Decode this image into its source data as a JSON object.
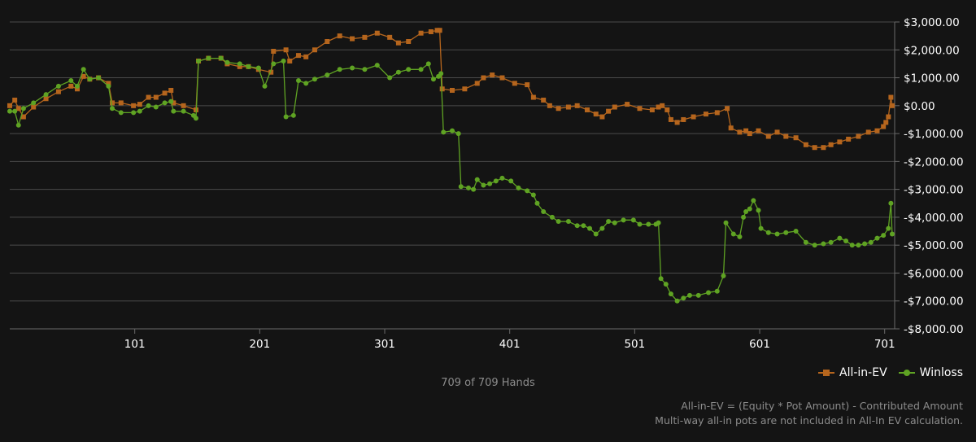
{
  "chart_data": {
    "type": "line",
    "xlabel": "",
    "ylabel": "",
    "x_range": [
      1,
      709
    ],
    "x_ticks": [
      101,
      201,
      301,
      401,
      501,
      601,
      701
    ],
    "ylim": [
      -8000,
      3000
    ],
    "y_ticks": [
      {
        "value": 3000,
        "label": "$3,000.00"
      },
      {
        "value": 2000,
        "label": "$2,000.00"
      },
      {
        "value": 1000,
        "label": "$1,000.00"
      },
      {
        "value": 0,
        "label": "$0.00"
      },
      {
        "value": -1000,
        "label": "-$1,000.00"
      },
      {
        "value": -2000,
        "label": "-$2,000.00"
      },
      {
        "value": -3000,
        "label": "-$3,000.00"
      },
      {
        "value": -4000,
        "label": "-$4,000.00"
      },
      {
        "value": -5000,
        "label": "-$5,000.00"
      },
      {
        "value": -6000,
        "label": "-$6,000.00"
      },
      {
        "value": -7000,
        "label": "-$7,000.00"
      },
      {
        "value": -8000,
        "label": "-$8,000.00"
      }
    ],
    "grid": true,
    "legend_position": "bottom-right",
    "series": [
      {
        "name": "All-in-EV",
        "color": "#b5651d",
        "marker": "square",
        "points": [
          [
            1,
            0
          ],
          [
            5,
            200
          ],
          [
            8,
            -100
          ],
          [
            12,
            -400
          ],
          [
            20,
            -50
          ],
          [
            30,
            250
          ],
          [
            40,
            500
          ],
          [
            50,
            700
          ],
          [
            55,
            600
          ],
          [
            60,
            1050
          ],
          [
            65,
            950
          ],
          [
            72,
            1000
          ],
          [
            80,
            800
          ],
          [
            83,
            100
          ],
          [
            90,
            100
          ],
          [
            100,
            0
          ],
          [
            105,
            50
          ],
          [
            112,
            300
          ],
          [
            118,
            300
          ],
          [
            125,
            450
          ],
          [
            130,
            550
          ],
          [
            132,
            100
          ],
          [
            140,
            0
          ],
          [
            150,
            -150
          ],
          [
            152,
            1600
          ],
          [
            160,
            1700
          ],
          [
            170,
            1700
          ],
          [
            175,
            1500
          ],
          [
            185,
            1400
          ],
          [
            192,
            1400
          ],
          [
            200,
            1300
          ],
          [
            210,
            1200
          ],
          [
            212,
            1950
          ],
          [
            222,
            2000
          ],
          [
            225,
            1600
          ],
          [
            232,
            1800
          ],
          [
            238,
            1750
          ],
          [
            245,
            2000
          ],
          [
            255,
            2300
          ],
          [
            265,
            2500
          ],
          [
            275,
            2400
          ],
          [
            285,
            2450
          ],
          [
            295,
            2600
          ],
          [
            305,
            2450
          ],
          [
            312,
            2250
          ],
          [
            320,
            2300
          ],
          [
            330,
            2600
          ],
          [
            338,
            2650
          ],
          [
            343,
            2700
          ],
          [
            345,
            2700
          ],
          [
            347,
            600
          ],
          [
            355,
            550
          ],
          [
            365,
            600
          ],
          [
            375,
            800
          ],
          [
            380,
            1000
          ],
          [
            387,
            1100
          ],
          [
            395,
            1000
          ],
          [
            405,
            800
          ],
          [
            415,
            750
          ],
          [
            420,
            300
          ],
          [
            428,
            200
          ],
          [
            433,
            0
          ],
          [
            440,
            -100
          ],
          [
            448,
            -50
          ],
          [
            455,
            0
          ],
          [
            463,
            -150
          ],
          [
            470,
            -300
          ],
          [
            475,
            -400
          ],
          [
            480,
            -200
          ],
          [
            485,
            -50
          ],
          [
            495,
            50
          ],
          [
            505,
            -100
          ],
          [
            515,
            -150
          ],
          [
            520,
            -50
          ],
          [
            523,
            0
          ],
          [
            527,
            -150
          ],
          [
            530,
            -500
          ],
          [
            535,
            -600
          ],
          [
            540,
            -500
          ],
          [
            548,
            -400
          ],
          [
            558,
            -300
          ],
          [
            567,
            -250
          ],
          [
            575,
            -100
          ],
          [
            578,
            -800
          ],
          [
            585,
            -950
          ],
          [
            590,
            -900
          ],
          [
            593,
            -1000
          ],
          [
            600,
            -900
          ],
          [
            608,
            -1100
          ],
          [
            615,
            -950
          ],
          [
            622,
            -1100
          ],
          [
            630,
            -1150
          ],
          [
            638,
            -1400
          ],
          [
            645,
            -1500
          ],
          [
            652,
            -1500
          ],
          [
            658,
            -1400
          ],
          [
            665,
            -1300
          ],
          [
            672,
            -1200
          ],
          [
            680,
            -1100
          ],
          [
            688,
            -950
          ],
          [
            695,
            -900
          ],
          [
            700,
            -750
          ],
          [
            702,
            -600
          ],
          [
            704,
            -400
          ],
          [
            706,
            300
          ],
          [
            707,
            0
          ]
        ]
      },
      {
        "name": "Winloss",
        "color": "#5fa323",
        "marker": "circle",
        "points": [
          [
            1,
            -200
          ],
          [
            5,
            -200
          ],
          [
            8,
            -700
          ],
          [
            12,
            -100
          ],
          [
            20,
            100
          ],
          [
            30,
            400
          ],
          [
            40,
            700
          ],
          [
            50,
            900
          ],
          [
            55,
            700
          ],
          [
            60,
            1300
          ],
          [
            65,
            950
          ],
          [
            72,
            1000
          ],
          [
            80,
            700
          ],
          [
            83,
            -100
          ],
          [
            90,
            -250
          ],
          [
            100,
            -250
          ],
          [
            105,
            -200
          ],
          [
            112,
            0
          ],
          [
            118,
            -50
          ],
          [
            125,
            100
          ],
          [
            130,
            150
          ],
          [
            132,
            -200
          ],
          [
            140,
            -200
          ],
          [
            148,
            -350
          ],
          [
            150,
            -450
          ],
          [
            152,
            1600
          ],
          [
            160,
            1700
          ],
          [
            170,
            1700
          ],
          [
            175,
            1550
          ],
          [
            185,
            1500
          ],
          [
            192,
            1400
          ],
          [
            200,
            1350
          ],
          [
            205,
            700
          ],
          [
            212,
            1500
          ],
          [
            220,
            1600
          ],
          [
            222,
            -400
          ],
          [
            228,
            -350
          ],
          [
            232,
            900
          ],
          [
            238,
            800
          ],
          [
            245,
            950
          ],
          [
            255,
            1100
          ],
          [
            265,
            1300
          ],
          [
            275,
            1350
          ],
          [
            285,
            1300
          ],
          [
            295,
            1450
          ],
          [
            305,
            1000
          ],
          [
            312,
            1200
          ],
          [
            320,
            1300
          ],
          [
            330,
            1300
          ],
          [
            336,
            1500
          ],
          [
            340,
            950
          ],
          [
            344,
            1050
          ],
          [
            346,
            1150
          ],
          [
            348,
            -950
          ],
          [
            355,
            -900
          ],
          [
            360,
            -1000
          ],
          [
            362,
            -2900
          ],
          [
            368,
            -2950
          ],
          [
            372,
            -3000
          ],
          [
            375,
            -2650
          ],
          [
            380,
            -2850
          ],
          [
            385,
            -2800
          ],
          [
            390,
            -2700
          ],
          [
            395,
            -2600
          ],
          [
            402,
            -2700
          ],
          [
            408,
            -2950
          ],
          [
            415,
            -3050
          ],
          [
            420,
            -3200
          ],
          [
            423,
            -3500
          ],
          [
            428,
            -3800
          ],
          [
            435,
            -4000
          ],
          [
            440,
            -4150
          ],
          [
            448,
            -4150
          ],
          [
            455,
            -4300
          ],
          [
            460,
            -4300
          ],
          [
            465,
            -4400
          ],
          [
            470,
            -4600
          ],
          [
            475,
            -4400
          ],
          [
            480,
            -4150
          ],
          [
            485,
            -4200
          ],
          [
            492,
            -4100
          ],
          [
            500,
            -4100
          ],
          [
            505,
            -4250
          ],
          [
            512,
            -4250
          ],
          [
            518,
            -4250
          ],
          [
            520,
            -4200
          ],
          [
            522,
            -6200
          ],
          [
            526,
            -6400
          ],
          [
            530,
            -6750
          ],
          [
            535,
            -7000
          ],
          [
            540,
            -6900
          ],
          [
            545,
            -6800
          ],
          [
            552,
            -6800
          ],
          [
            560,
            -6700
          ],
          [
            567,
            -6650
          ],
          [
            572,
            -6100
          ],
          [
            574,
            -4200
          ],
          [
            580,
            -4600
          ],
          [
            585,
            -4700
          ],
          [
            588,
            -4000
          ],
          [
            590,
            -3800
          ],
          [
            593,
            -3700
          ],
          [
            596,
            -3400
          ],
          [
            600,
            -3750
          ],
          [
            602,
            -4400
          ],
          [
            608,
            -4550
          ],
          [
            615,
            -4600
          ],
          [
            622,
            -4550
          ],
          [
            630,
            -4500
          ],
          [
            638,
            -4900
          ],
          [
            645,
            -5000
          ],
          [
            652,
            -4950
          ],
          [
            658,
            -4900
          ],
          [
            665,
            -4750
          ],
          [
            670,
            -4850
          ],
          [
            675,
            -5000
          ],
          [
            680,
            -5000
          ],
          [
            685,
            -4950
          ],
          [
            690,
            -4900
          ],
          [
            695,
            -4750
          ],
          [
            700,
            -4650
          ],
          [
            704,
            -4400
          ],
          [
            706,
            -3500
          ],
          [
            707,
            -4600
          ]
        ]
      }
    ]
  },
  "legend": [
    {
      "label": "All-in-EV",
      "color": "#b5651d",
      "marker": "square"
    },
    {
      "label": "Winloss",
      "color": "#5fa323",
      "marker": "circle"
    }
  ],
  "hands_count": "709 of 709 Hands",
  "footnote": {
    "line1": "All-in-EV = (Equity * Pot Amount) - Contributed Amount",
    "line2": "Multi-way all-in pots are not included in All-In EV calculation."
  }
}
